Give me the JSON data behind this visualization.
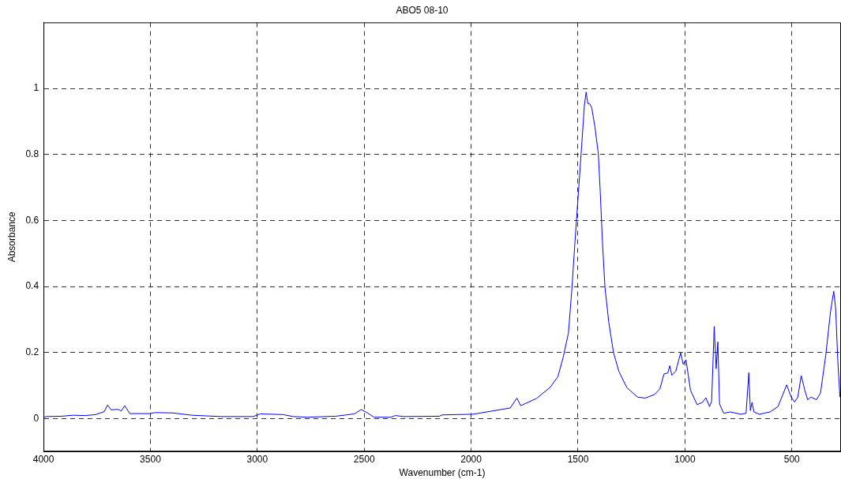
{
  "chart_data": {
    "type": "line",
    "title": "ABO5 08-10",
    "xlabel": "Wavenumber (cm-1)",
    "ylabel": "Absorbance",
    "xlim": [
      4000,
      270
    ],
    "xticks": [
      4000,
      3500,
      3000,
      2500,
      2000,
      1500,
      1000,
      500
    ],
    "ylim": [
      -0.1,
      1.2
    ],
    "yticks": [
      0,
      0.2,
      0.4,
      0.6,
      0.8,
      1
    ],
    "grid": true,
    "legend": false,
    "marker": "none",
    "line_style": "solid",
    "series": [
      {
        "color": "#0000ff",
        "x": [
          4000,
          3988,
          3915,
          3862,
          3803,
          3756,
          3716,
          3700,
          3683,
          3652,
          3636,
          3620,
          3596,
          3503,
          3477,
          3398,
          3305,
          3171,
          3019,
          2986,
          2933,
          2880,
          2832,
          2766,
          2633,
          2547,
          2514,
          2487,
          2454,
          2375,
          2355,
          2315,
          2148,
          2135,
          2066,
          1991,
          1817,
          1786,
          1768,
          1694,
          1631,
          1594,
          1570,
          1545,
          1529,
          1514,
          1498,
          1483,
          1470,
          1462,
          1454,
          1446,
          1436,
          1421,
          1405,
          1396,
          1386,
          1374,
          1356,
          1334,
          1309,
          1272,
          1222,
          1185,
          1142,
          1117,
          1098,
          1080,
          1071,
          1061,
          1043,
          1020,
          1008,
          995,
          974,
          943,
          918,
          902,
          885,
          875,
          863,
          854,
          846,
          838,
          819,
          788,
          739,
          714,
          701,
          694,
          686,
          677,
          652,
          602,
          565,
          524,
          503,
          487,
          472,
          456,
          441,
          426,
          410,
          385,
          366,
          341,
          319,
          304,
          295,
          285,
          275
        ],
        "values": [
          0.002,
          0.006,
          0.007,
          0.01,
          0.009,
          0.012,
          0.021,
          0.041,
          0.026,
          0.028,
          0.023,
          0.039,
          0.015,
          0.015,
          0.018,
          0.017,
          0.01,
          0.006,
          0.006,
          0.014,
          0.013,
          0.012,
          0.006,
          0.004,
          0.007,
          0.014,
          0.027,
          0.018,
          0.004,
          0.004,
          0.009,
          0.006,
          0.007,
          0.011,
          0.012,
          0.013,
          0.032,
          0.062,
          0.039,
          0.061,
          0.094,
          0.127,
          0.184,
          0.258,
          0.39,
          0.538,
          0.686,
          0.826,
          0.95,
          0.989,
          0.954,
          0.954,
          0.942,
          0.884,
          0.802,
          0.686,
          0.538,
          0.398,
          0.291,
          0.2,
          0.143,
          0.094,
          0.065,
          0.062,
          0.073,
          0.09,
          0.135,
          0.138,
          0.16,
          0.131,
          0.143,
          0.199,
          0.164,
          0.178,
          0.086,
          0.042,
          0.049,
          0.063,
          0.036,
          0.053,
          0.279,
          0.151,
          0.232,
          0.044,
          0.016,
          0.02,
          0.013,
          0.016,
          0.139,
          0.024,
          0.049,
          0.02,
          0.013,
          0.02,
          0.036,
          0.102,
          0.065,
          0.05,
          0.065,
          0.13,
          0.09,
          0.057,
          0.065,
          0.057,
          0.077,
          0.193,
          0.324,
          0.386,
          0.333,
          0.176,
          0.065
        ]
      }
    ]
  }
}
